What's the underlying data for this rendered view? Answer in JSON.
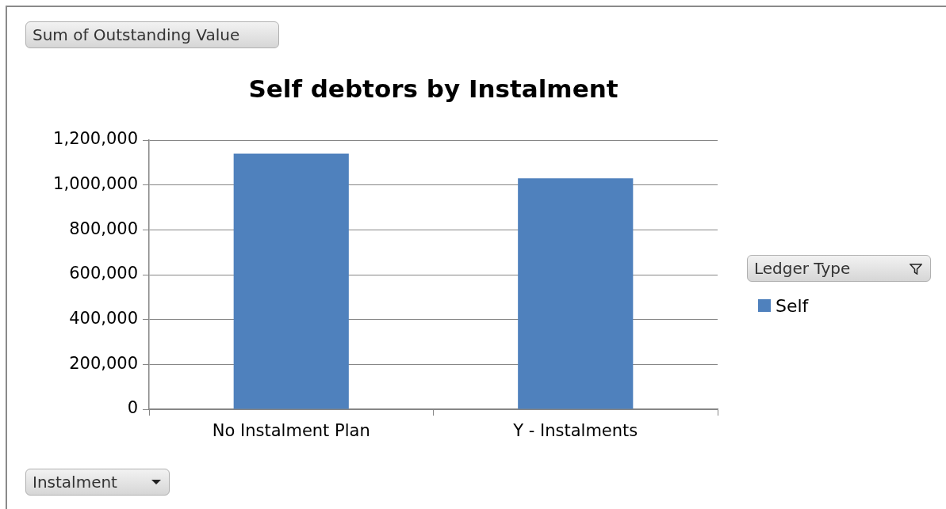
{
  "chart_data": {
    "type": "bar",
    "title": "Self debtors by Instalment",
    "annotations": [
      "Sum of Outstanding Value"
    ],
    "xlabel": "Instalment",
    "legend_title": "Ledger Type",
    "categories": [
      "No Instalment Plan",
      "Y - Instalments"
    ],
    "series": [
      {
        "name": "Self",
        "color": "#4f81bd",
        "values": [
          1140000,
          1030000
        ]
      }
    ],
    "ylim": [
      0,
      1200000
    ],
    "yticks": [
      {
        "value": 0,
        "label": "0"
      },
      {
        "value": 200000,
        "label": "200,000"
      },
      {
        "value": 400000,
        "label": "400,000"
      },
      {
        "value": 600000,
        "label": "600,000"
      },
      {
        "value": 800000,
        "label": "800,000"
      },
      {
        "value": 1000000,
        "label": "1,000,000"
      },
      {
        "value": 1200000,
        "label": "1,200,000"
      }
    ],
    "grid": "y",
    "legend": "right"
  }
}
